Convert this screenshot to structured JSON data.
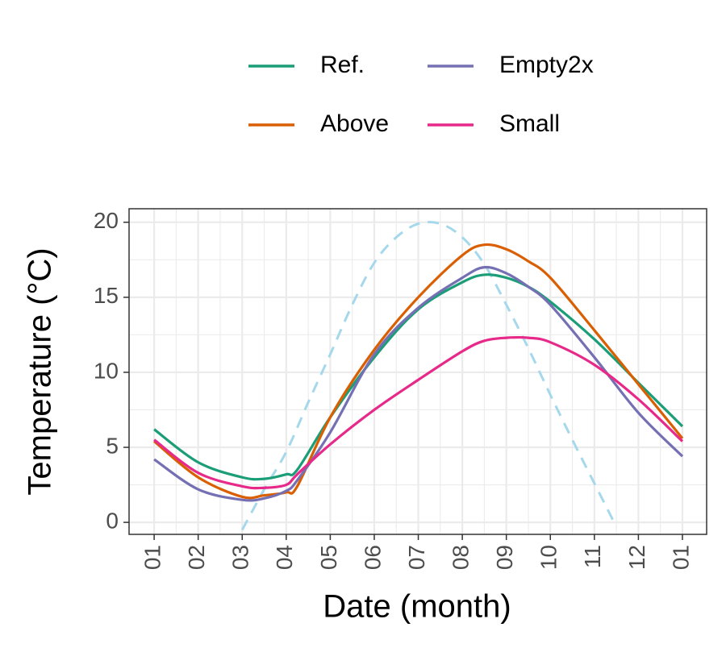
{
  "chart_data": {
    "type": "line",
    "x_label": "Date (month)",
    "y_label": "Temperature (°C)",
    "x": [
      0,
      1,
      2,
      2.5,
      3,
      3.25,
      4,
      5,
      6,
      7,
      7.5,
      8,
      8.5,
      9,
      10,
      11,
      12
    ],
    "series": [
      {
        "name": "Ref.",
        "color": "#1b9e77",
        "values": [
          6.2,
          4.0,
          3.0,
          2.9,
          3.2,
          3.5,
          7.0,
          11.0,
          14.2,
          16.0,
          16.5,
          16.3,
          15.7,
          14.7,
          12.2,
          9.3,
          6.4
        ]
      },
      {
        "name": "Above",
        "color": "#d95f02",
        "values": [
          5.4,
          3.0,
          1.7,
          1.8,
          2.0,
          2.4,
          7.0,
          11.5,
          15.0,
          17.8,
          18.5,
          18.2,
          17.4,
          16.3,
          12.8,
          9.2,
          5.6
        ]
      },
      {
        "name": "Empty2x",
        "color": "#7570b3",
        "values": [
          4.2,
          2.2,
          1.5,
          1.6,
          2.1,
          2.8,
          6.0,
          11.2,
          14.3,
          16.3,
          17.0,
          16.6,
          15.7,
          14.5,
          11.0,
          7.3,
          4.4
        ]
      },
      {
        "name": "Small",
        "color": "#e7298a",
        "values": [
          5.5,
          3.3,
          2.4,
          2.3,
          2.5,
          3.2,
          5.2,
          7.5,
          9.5,
          11.4,
          12.1,
          12.3,
          12.3,
          12.0,
          10.5,
          8.2,
          5.4
        ]
      }
    ],
    "dashed_line": {
      "color": "#a6d8ec",
      "x": [
        2,
        2.5,
        3,
        3.5,
        4,
        4.5,
        5,
        5.5,
        6,
        6.5,
        7,
        7.5,
        8,
        8.5,
        9,
        9.5,
        10,
        10.5
      ],
      "values": [
        -0.5,
        2.2,
        4.7,
        8.0,
        11.2,
        14.5,
        17.3,
        19.0,
        19.9,
        19.9,
        19.0,
        17.2,
        14.5,
        11.6,
        8.5,
        5.5,
        2.6,
        -0.3
      ]
    },
    "xlim": [
      -0.57,
      12.55
    ],
    "ylim": [
      -0.8,
      20.9
    ],
    "xticks": [
      {
        "value": 0,
        "label": "01"
      },
      {
        "value": 1,
        "label": "02"
      },
      {
        "value": 2,
        "label": "03"
      },
      {
        "value": 3,
        "label": "04"
      },
      {
        "value": 4,
        "label": "05"
      },
      {
        "value": 5,
        "label": "06"
      },
      {
        "value": 6,
        "label": "07"
      },
      {
        "value": 7,
        "label": "08"
      },
      {
        "value": 8,
        "label": "09"
      },
      {
        "value": 9,
        "label": "10"
      },
      {
        "value": 10,
        "label": "11"
      },
      {
        "value": 11,
        "label": "12"
      },
      {
        "value": 12,
        "label": "01"
      }
    ],
    "yticks": [
      0,
      5,
      10,
      15,
      20
    ],
    "grid": true,
    "legend_position": "top"
  }
}
